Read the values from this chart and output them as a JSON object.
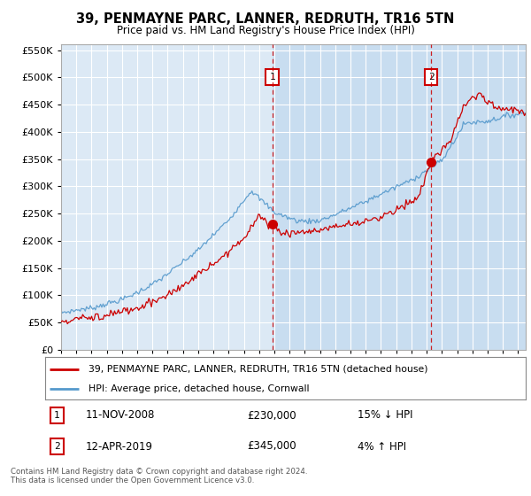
{
  "title": "39, PENMAYNE PARC, LANNER, REDRUTH, TR16 5TN",
  "subtitle": "Price paid vs. HM Land Registry's House Price Index (HPI)",
  "background_color": "#ffffff",
  "plot_bg_color_left": "#dce9f5",
  "plot_bg_color_right": "#c8ddf0",
  "grid_color": "#ffffff",
  "hpi_color": "#5599cc",
  "price_color": "#cc0000",
  "ylim": [
    0,
    560000
  ],
  "yticks": [
    0,
    50000,
    100000,
    150000,
    200000,
    250000,
    300000,
    350000,
    400000,
    450000,
    500000,
    550000
  ],
  "transaction1_price": 230000,
  "transaction1_label": "11-NOV-2008",
  "transaction1_pct": "15% ↓ HPI",
  "transaction1_year": 2008.87,
  "transaction2_price": 345000,
  "transaction2_label": "12-APR-2019",
  "transaction2_pct": "4% ↑ HPI",
  "transaction2_year": 2019.29,
  "legend_line1": "39, PENMAYNE PARC, LANNER, REDRUTH, TR16 5TN (detached house)",
  "legend_line2": "HPI: Average price, detached house, Cornwall",
  "footer": "Contains HM Land Registry data © Crown copyright and database right 2024.\nThis data is licensed under the Open Government Licence v3.0.",
  "xmin": 1995.0,
  "xmax": 2025.5,
  "box1_label": "1",
  "box2_label": "2"
}
